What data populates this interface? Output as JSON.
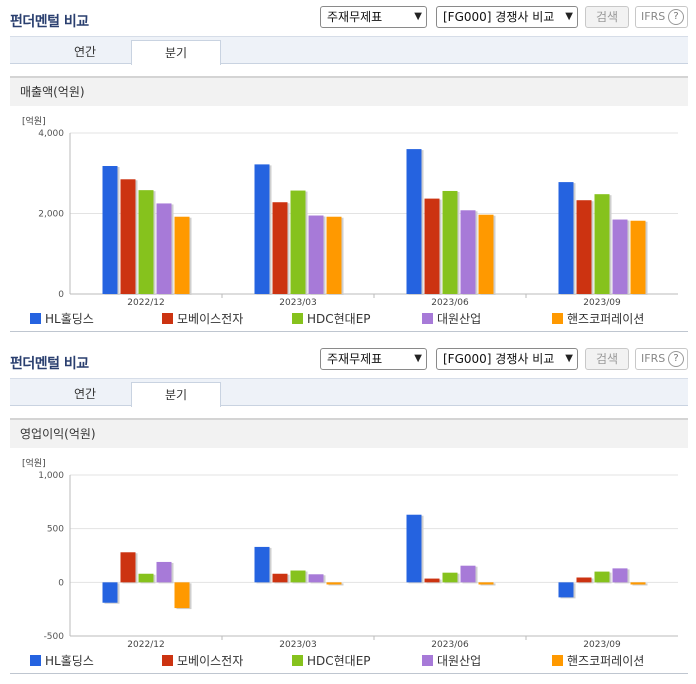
{
  "colors": {
    "s0": "#2563e0",
    "s1": "#cc3311",
    "s2": "#86c21d",
    "s3": "#a77ad8",
    "s4": "#ff9900"
  },
  "panels": [
    {
      "title": "펀더멘털 비교",
      "select1": "주재무제표",
      "select2": "[FG000] 경쟁사 비교",
      "search_label": "검색",
      "ifrs_label": "IFRS",
      "help_icon": "?",
      "tabs": [
        "연간",
        "분기"
      ],
      "section_title": "매출액(억원)",
      "unit_label": "[억원]",
      "legend": [
        "HL홀딩스",
        "모베이스전자",
        "HDC현대EP",
        "대원산업",
        "핸즈코퍼레이션"
      ]
    },
    {
      "title": "펀더멘털 비교",
      "select1": "주재무제표",
      "select2": "[FG000] 경쟁사 비교",
      "search_label": "검색",
      "ifrs_label": "IFRS",
      "help_icon": "?",
      "tabs": [
        "연간",
        "분기"
      ],
      "section_title": "영업이익(억원)",
      "unit_label": "[억원]",
      "legend": [
        "HL홀딩스",
        "모베이스전자",
        "HDC현대EP",
        "대원산업",
        "핸즈코퍼레이션"
      ]
    }
  ],
  "chart_data": [
    {
      "type": "bar",
      "categories": [
        "2022/12",
        "2023/03",
        "2023/06",
        "2023/09"
      ],
      "ylim": [
        0,
        4000
      ],
      "yticks": [
        "0",
        "2,000",
        "4,000"
      ],
      "grid": true,
      "legend_position": "bottom",
      "series": [
        {
          "name": "HL홀딩스",
          "values": [
            3180,
            3220,
            3600,
            2780
          ]
        },
        {
          "name": "모베이스전자",
          "values": [
            2850,
            2280,
            2370,
            2330
          ]
        },
        {
          "name": "HDC현대EP",
          "values": [
            2580,
            2570,
            2560,
            2480
          ]
        },
        {
          "name": "대원산업",
          "values": [
            2250,
            1950,
            2080,
            1850
          ]
        },
        {
          "name": "핸즈코퍼레이션",
          "values": [
            1920,
            1920,
            1970,
            1820
          ]
        }
      ]
    },
    {
      "type": "bar",
      "categories": [
        "2022/12",
        "2023/03",
        "2023/06",
        "2023/09"
      ],
      "ylim": [
        -500,
        1000
      ],
      "yticks": [
        "-500",
        "0",
        "500",
        "1,000"
      ],
      "grid": true,
      "legend_position": "bottom",
      "series": [
        {
          "name": "HL홀딩스",
          "values": [
            -190,
            330,
            630,
            -140
          ]
        },
        {
          "name": "모베이스전자",
          "values": [
            280,
            80,
            35,
            45
          ]
        },
        {
          "name": "HDC현대EP",
          "values": [
            80,
            110,
            90,
            100
          ]
        },
        {
          "name": "대원산업",
          "values": [
            190,
            75,
            155,
            130
          ]
        },
        {
          "name": "핸즈코퍼레이션",
          "values": [
            -240,
            -20,
            -20,
            -20
          ]
        }
      ]
    }
  ]
}
